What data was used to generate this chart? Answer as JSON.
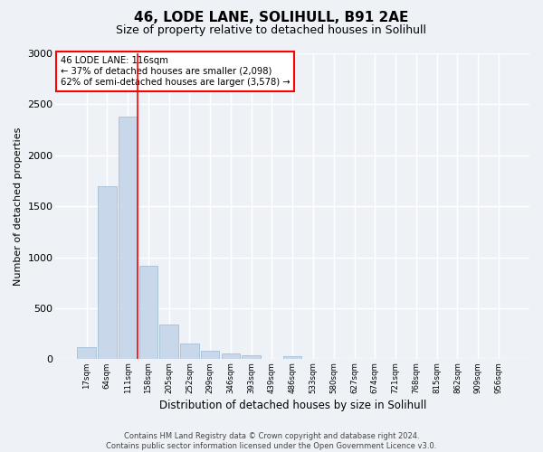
{
  "title": "46, LODE LANE, SOLIHULL, B91 2AE",
  "subtitle": "Size of property relative to detached houses in Solihull",
  "xlabel": "Distribution of detached houses by size in Solihull",
  "ylabel": "Number of detached properties",
  "bar_color": "#c8d8ea",
  "bar_edge_color": "#9ab8d0",
  "background_color": "#eef2f7",
  "grid_color": "#ffffff",
  "categories": [
    "17sqm",
    "64sqm",
    "111sqm",
    "158sqm",
    "205sqm",
    "252sqm",
    "299sqm",
    "346sqm",
    "393sqm",
    "439sqm",
    "486sqm",
    "533sqm",
    "580sqm",
    "627sqm",
    "674sqm",
    "721sqm",
    "768sqm",
    "815sqm",
    "862sqm",
    "909sqm",
    "956sqm"
  ],
  "values": [
    120,
    1700,
    2380,
    920,
    340,
    155,
    80,
    55,
    35,
    0,
    30,
    0,
    0,
    0,
    0,
    0,
    0,
    0,
    0,
    0,
    0
  ],
  "ylim": [
    0,
    3000
  ],
  "yticks": [
    0,
    500,
    1000,
    1500,
    2000,
    2500,
    3000
  ],
  "annotation_title": "46 LODE LANE: 116sqm",
  "annotation_line1": "← 37% of detached houses are smaller (2,098)",
  "annotation_line2": "62% of semi-detached houses are larger (3,578) →",
  "property_marker_bin": 2,
  "footer_line1": "Contains HM Land Registry data © Crown copyright and database right 2024.",
  "footer_line2": "Contains public sector information licensed under the Open Government Licence v3.0."
}
